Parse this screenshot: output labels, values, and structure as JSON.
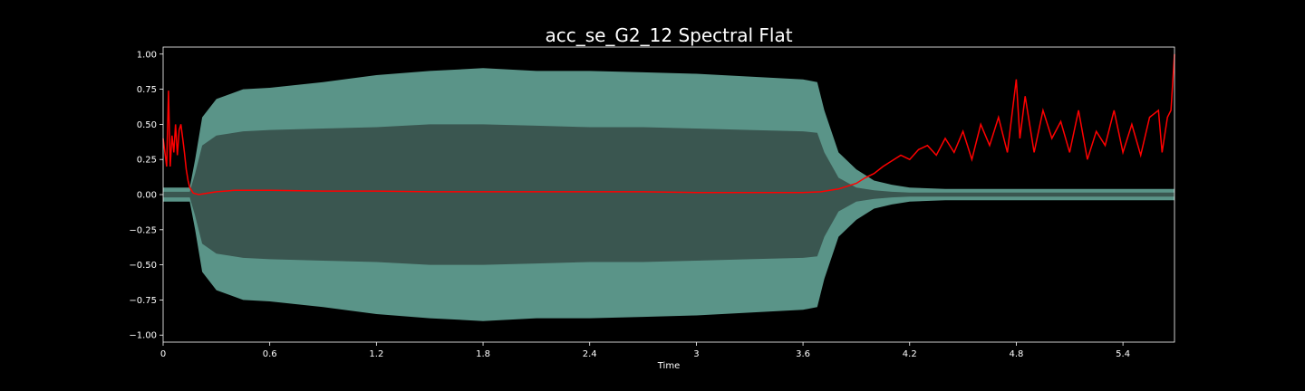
{
  "chart_data": {
    "type": "line",
    "title": "acc_se_G2_12 Spectral Flat",
    "xlabel": "Time",
    "ylabel": "",
    "xlim": [
      0,
      5.69
    ],
    "ylim": [
      -1.05,
      1.05
    ],
    "x_ticks": [
      0,
      0.6,
      1.2,
      1.8,
      2.4,
      3,
      3.6,
      4.2,
      4.8,
      5.4
    ],
    "x_tick_labels": [
      "0",
      "0.6",
      "1.2",
      "1.8",
      "2.4",
      "3",
      "3.6",
      "4.2",
      "4.8",
      "5.4"
    ],
    "y_ticks": [
      1.0,
      0.75,
      0.5,
      0.25,
      0.0,
      -0.25,
      -0.5,
      -0.75,
      -1.0
    ],
    "y_tick_labels": [
      "1.00",
      "0.75",
      "0.50",
      "0.25",
      "0.00",
      "−0.25",
      "−0.50",
      "−0.75",
      "−1.00"
    ],
    "grid": false,
    "colors": {
      "background": "#000000",
      "axes_edge": "#ffffff",
      "waveform_peak": "#5a9488",
      "waveform_rms": "#3a5650",
      "flatness_line": "#ff0000"
    },
    "waveform_envelope": {
      "x": [
        0.0,
        0.1,
        0.15,
        0.18,
        0.22,
        0.3,
        0.45,
        0.6,
        0.9,
        1.2,
        1.5,
        1.8,
        2.1,
        2.4,
        2.7,
        3.0,
        3.3,
        3.6,
        3.68,
        3.72,
        3.8,
        3.9,
        4.0,
        4.1,
        4.2,
        4.4,
        4.8,
        5.2,
        5.69
      ],
      "peak": [
        0.05,
        0.05,
        0.05,
        0.25,
        0.55,
        0.68,
        0.75,
        0.76,
        0.8,
        0.85,
        0.88,
        0.9,
        0.88,
        0.88,
        0.87,
        0.86,
        0.84,
        0.82,
        0.8,
        0.6,
        0.3,
        0.18,
        0.1,
        0.07,
        0.05,
        0.04,
        0.04,
        0.04,
        0.04
      ],
      "rms": [
        0.02,
        0.02,
        0.02,
        0.15,
        0.35,
        0.42,
        0.45,
        0.46,
        0.47,
        0.48,
        0.5,
        0.5,
        0.49,
        0.48,
        0.48,
        0.47,
        0.46,
        0.45,
        0.44,
        0.3,
        0.12,
        0.05,
        0.03,
        0.02,
        0.015,
        0.015,
        0.015,
        0.015,
        0.015
      ]
    },
    "series": [
      {
        "x": [
          0.0,
          0.02,
          0.03,
          0.04,
          0.05,
          0.06,
          0.07,
          0.08,
          0.09,
          0.1,
          0.11,
          0.12,
          0.13,
          0.14,
          0.15,
          0.17,
          0.2,
          0.25,
          0.3,
          0.4,
          0.6,
          0.9,
          1.2,
          1.5,
          1.8,
          2.1,
          2.4,
          2.7,
          3.0,
          3.3,
          3.6,
          3.7,
          3.8,
          3.85,
          3.9,
          3.95,
          4.0,
          4.05,
          4.1,
          4.15,
          4.2,
          4.25,
          4.3,
          4.35,
          4.4,
          4.45,
          4.5,
          4.55,
          4.6,
          4.65,
          4.7,
          4.75,
          4.8,
          4.82,
          4.85,
          4.9,
          4.95,
          5.0,
          5.05,
          5.1,
          5.15,
          5.2,
          5.25,
          5.3,
          5.35,
          5.4,
          5.45,
          5.5,
          5.55,
          5.6,
          5.62,
          5.65,
          5.67,
          5.69
        ],
        "y": [
          0.4,
          0.2,
          0.74,
          0.2,
          0.42,
          0.3,
          0.5,
          0.28,
          0.46,
          0.5,
          0.4,
          0.3,
          0.18,
          0.1,
          0.05,
          0.01,
          0.0,
          0.01,
          0.02,
          0.03,
          0.03,
          0.025,
          0.025,
          0.02,
          0.02,
          0.02,
          0.02,
          0.02,
          0.015,
          0.015,
          0.015,
          0.02,
          0.04,
          0.06,
          0.08,
          0.12,
          0.15,
          0.2,
          0.24,
          0.28,
          0.25,
          0.32,
          0.35,
          0.28,
          0.4,
          0.3,
          0.45,
          0.25,
          0.5,
          0.35,
          0.55,
          0.3,
          0.82,
          0.4,
          0.7,
          0.3,
          0.6,
          0.4,
          0.52,
          0.3,
          0.6,
          0.25,
          0.45,
          0.35,
          0.6,
          0.3,
          0.5,
          0.28,
          0.55,
          0.6,
          0.3,
          0.55,
          0.6,
          1.0
        ]
      }
    ]
  }
}
